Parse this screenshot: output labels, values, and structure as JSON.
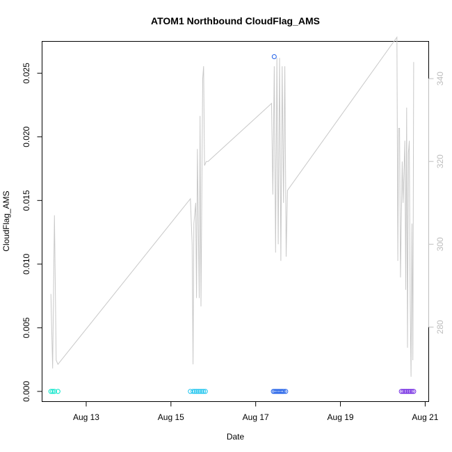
{
  "chart_data": {
    "type": "scatter",
    "title": "ATOM1 Northbound CloudFlag_AMS",
    "xlabel": "Date",
    "ylabel": "CloudFlag_AMS",
    "xlim": [
      "2023-08-11T23:00",
      "2023-08-21T02:00"
    ],
    "ylim": [
      -0.0008,
      0.0275
    ],
    "x_ticks": [
      {
        "value": "2023-08-13T00:00",
        "label": "Aug 13"
      },
      {
        "value": "2023-08-15T00:00",
        "label": "Aug 15"
      },
      {
        "value": "2023-08-17T00:00",
        "label": "Aug 17"
      },
      {
        "value": "2023-08-19T00:00",
        "label": "Aug 19"
      },
      {
        "value": "2023-08-21T00:00",
        "label": "Aug 21"
      }
    ],
    "y_ticks": [
      {
        "value": 0.0,
        "label": "0.000"
      },
      {
        "value": 0.005,
        "label": "0.005"
      },
      {
        "value": 0.01,
        "label": "0.010"
      },
      {
        "value": 0.015,
        "label": "0.015"
      },
      {
        "value": 0.02,
        "label": "0.020"
      },
      {
        "value": 0.025,
        "label": "0.025"
      }
    ],
    "y2lim": [
      262,
      349
    ],
    "y2_ticks": [
      {
        "value": 280,
        "label": "280"
      },
      {
        "value": 300,
        "label": "300"
      },
      {
        "value": 320,
        "label": "320"
      },
      {
        "value": 340,
        "label": "340"
      }
    ],
    "grid": false,
    "series": [
      {
        "kind": "points",
        "color": "#00e5c8",
        "x": [
          "2023-08-12T04:00",
          "2023-08-12T05:00",
          "2023-08-12T06:00",
          "2023-08-12T08:00"
        ],
        "y": [
          0,
          0,
          0,
          0
        ]
      },
      {
        "kind": "points",
        "color": "#19c3ee",
        "x": [
          "2023-08-15T11:00",
          "2023-08-15T12:30",
          "2023-08-15T13:30",
          "2023-08-15T14:30",
          "2023-08-15T15:30",
          "2023-08-15T16:30",
          "2023-08-15T17:30",
          "2023-08-15T18:30",
          "2023-08-15T19:30"
        ],
        "y": [
          0,
          0,
          0,
          0,
          0,
          0,
          0,
          0,
          0
        ]
      },
      {
        "kind": "points",
        "color": "#1f5fe8",
        "x": [
          "2023-08-17T10:00",
          "2023-08-17T10:45",
          "2023-08-17T11:30",
          "2023-08-17T12:15",
          "2023-08-17T13:00",
          "2023-08-17T13:45",
          "2023-08-17T14:30",
          "2023-08-17T15:15",
          "2023-08-17T16:00",
          "2023-08-17T17:00",
          "2023-08-17T10:30"
        ],
        "y": [
          0,
          0,
          0,
          0,
          0,
          0,
          0,
          0,
          0,
          0,
          0.0263
        ]
      },
      {
        "kind": "points",
        "color": "#6a1de0",
        "x": [
          "2023-08-20T10:30",
          "2023-08-20T11:30",
          "2023-08-20T12:30",
          "2023-08-20T13:30",
          "2023-08-20T14:30",
          "2023-08-20T15:30",
          "2023-08-20T16:30",
          "2023-08-20T17:30"
        ],
        "y": [
          0,
          0,
          0,
          0,
          0,
          0,
          0,
          0
        ]
      },
      {
        "kind": "line",
        "axis": "right",
        "color": "#c8c8c8",
        "x": [
          "2023-08-12T04:00",
          "2023-08-12T05:00",
          "2023-08-12T06:00",
          "2023-08-12T07:00",
          "2023-08-12T08:00",
          "2023-08-15T11:00",
          "2023-08-15T12:00",
          "2023-08-15T12:30",
          "2023-08-15T13:00",
          "2023-08-15T14:00",
          "2023-08-15T14:30",
          "2023-08-15T15:00",
          "2023-08-15T16:00",
          "2023-08-15T16:30",
          "2023-08-15T17:00",
          "2023-08-15T18:00",
          "2023-08-15T18:30",
          "2023-08-15T19:00",
          "2023-08-15T20:00",
          "2023-08-15T21:00",
          "2023-08-17T09:00",
          "2023-08-17T09:45",
          "2023-08-17T10:30",
          "2023-08-17T11:15",
          "2023-08-17T12:00",
          "2023-08-17T12:45",
          "2023-08-17T13:30",
          "2023-08-17T14:15",
          "2023-08-17T15:00",
          "2023-08-17T15:45",
          "2023-08-17T16:30",
          "2023-08-17T17:15",
          "2023-08-17T18:00",
          "2023-08-20T08:00",
          "2023-08-20T08:30",
          "2023-08-20T09:00",
          "2023-08-20T09:30",
          "2023-08-20T10:00",
          "2023-08-20T11:00",
          "2023-08-20T11:30",
          "2023-08-20T12:30",
          "2023-08-20T13:00",
          "2023-08-20T13:30",
          "2023-08-20T14:00",
          "2023-08-20T14:30",
          "2023-08-20T15:00",
          "2023-08-20T15:30",
          "2023-08-20T16:00",
          "2023-08-20T16:30",
          "2023-08-20T17:00",
          "2023-08-20T17:30"
        ],
        "y": [
          288,
          270,
          307,
          272,
          271,
          311,
          300,
          271,
          305,
          310,
          287,
          323,
          287,
          331,
          285,
          340,
          343,
          319,
          320,
          320,
          334,
          312,
          343,
          298,
          345,
          300,
          345,
          296,
          343,
          310,
          343,
          297,
          313,
          350,
          296,
          328,
          328,
          292,
          320,
          310,
          325,
          289,
          333,
          275,
          322,
          325,
          287,
          268,
          305,
          272,
          344
        ]
      }
    ]
  }
}
